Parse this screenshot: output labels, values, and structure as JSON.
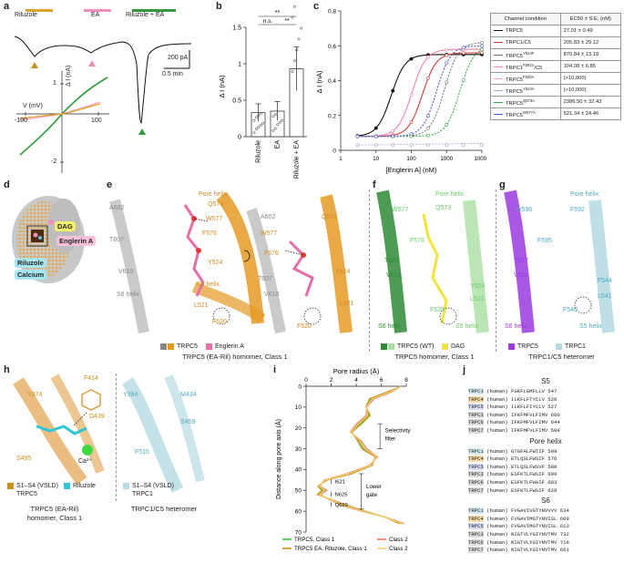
{
  "panels": {
    "a": "a",
    "b": "b",
    "c": "c",
    "d": "d",
    "e": "e",
    "f": "f",
    "g": "g",
    "h": "h",
    "i": "i",
    "j": "j"
  },
  "panel_a": {
    "bars": [
      {
        "label": "Riluzole",
        "color": "#e2a32a"
      },
      {
        "label": "EA",
        "color": "#ef8fb8"
      },
      {
        "label": "Riluzole + EA",
        "color": "#2f9a3a"
      }
    ],
    "scale_current": "200 pA",
    "scale_time": "0.5 min",
    "iv": {
      "xlabel": "V (mV)",
      "ylabel": "Δ I (nA)",
      "x_ticks": [
        "-100",
        "100"
      ],
      "y_ticks": [
        "1",
        "-2"
      ]
    }
  },
  "chart_data": [
    {
      "type": "bar",
      "panel": "b",
      "categories": [
        "Riluzole",
        "EA",
        "Riluzole + EA"
      ],
      "values": [
        0.33,
        0.35,
        0.93
      ],
      "errors": [
        0.12,
        0.13,
        0.3
      ],
      "ylabel": "Δ I (nA)",
      "ylim": [
        0,
        1.5
      ],
      "y_ticks": [
        "0",
        "0.5",
        "1",
        "1.5"
      ],
      "significance": [
        "n.s.",
        "**",
        "**"
      ]
    },
    {
      "type": "line",
      "panel": "c",
      "xlabel": "[Englerin A] (nM)",
      "ylabel": "Δ I (nA)",
      "xscale": "log",
      "xlim": [
        1,
        10000
      ],
      "ylim": [
        0,
        0.8
      ],
      "x_ticks": [
        "1",
        "10",
        "100",
        "1000",
        "10000"
      ],
      "y_ticks": [
        "0",
        "0.2",
        "0.4",
        "0.6",
        "0.8"
      ],
      "series": [
        {
          "name": "TRPC5",
          "color": "#111111",
          "ec50": 27.01,
          "top": 0.55
        },
        {
          "name": "TRPC1/C5",
          "color": "#d83a3a",
          "ec50": 205.83,
          "top": 0.56
        },
        {
          "name": "TRPC5Y524F",
          "color": "#777777",
          "ec50": 870.84,
          "top": 0.62
        },
        {
          "name": "TRPC1F591V/C5",
          "color": "#f07fb0",
          "ec50": 104.08,
          "top": 0.58
        },
        {
          "name": "TRPC5F520A",
          "color": "#f2a3c4",
          "ec50": null,
          "top": 0.05
        },
        {
          "name": "TRPC5Y524A",
          "color": "#9ab0e0",
          "ec50": null,
          "top": 0.04
        },
        {
          "name": "TRPC5Q573A",
          "color": "#3aa84a",
          "ec50": 2386.5,
          "top": 0.6
        },
        {
          "name": "TRPC5W577A",
          "color": "#4a5ad0",
          "ec50": 521.34,
          "top": 0.6
        }
      ]
    },
    {
      "type": "line",
      "panel": "i",
      "title": "Pore radius (Å)",
      "ylabel": "Distance along pore axis (Å)",
      "xlim": [
        0,
        8
      ],
      "ylim": [
        0,
        70
      ],
      "x_ticks": [
        "0",
        "2",
        "4",
        "6",
        "8"
      ],
      "y_ticks": [
        "0",
        "10",
        "20",
        "30",
        "40",
        "50",
        "60",
        "70"
      ],
      "series": [
        {
          "name": "TRPC5, Class 1",
          "color": "#3cc43c"
        },
        {
          "name": "Class 2",
          "color": "#f07a5a"
        },
        {
          "name": "TRPC5 EA, Riluzole, Class 1",
          "color": "#c9901e"
        },
        {
          "name": "Class 2",
          "color": "#f4d36e"
        }
      ],
      "annotations": [
        "Selectivity filter",
        "Lower gate",
        "I621",
        "N625",
        "Q629"
      ]
    }
  ],
  "table_c": {
    "header": [
      "Channel condition",
      "EC50 ± S.E. (nM)"
    ],
    "rows": [
      {
        "name": "TRPC5",
        "sup": "",
        "value": "27.01 ± 0.49",
        "color": "#111111"
      },
      {
        "name": "TRPC1/C5",
        "sup": "",
        "value": "205.83 ± 29.12",
        "color": "#d83a3a"
      },
      {
        "name": "TRPC5",
        "sup": "Y524F",
        "value": "870.84 ± 13.18",
        "color": "#777777"
      },
      {
        "name": "TRPC1",
        "sup": "F591V",
        "suffix": "/C5",
        "value": "104.08 ± 6.85",
        "color": "#f07fb0"
      },
      {
        "name": "TRPC5",
        "sup": "F520A",
        "value": "(>10,000)",
        "color": "#f2a3c4"
      },
      {
        "name": "TRPC5",
        "sup": "Y524A",
        "value": "(>10,000)",
        "color": "#9ab0e0"
      },
      {
        "name": "TRPC5",
        "sup": "Q573A",
        "value": "2386.50 ± 32.43",
        "color": "#3aa84a"
      },
      {
        "name": "TRPC5",
        "sup": "W577A",
        "value": "521.34 ± 24.46",
        "color": "#4a5ad0"
      }
    ]
  },
  "panel_d": {
    "labels": [
      "DAG",
      "Englerin A",
      "Riluzole",
      "Calcium"
    ]
  },
  "panel_e": {
    "residues": [
      "Pore helix",
      "Q573",
      "W577",
      "F576",
      "A602",
      "T607",
      "V610",
      "Y524",
      "L521",
      "F520",
      "S6 helix",
      "S5 helix"
    ],
    "residues_right": [
      "A602",
      "Q573",
      "W577",
      "F576",
      "T607",
      "V610",
      "Y524",
      "L521",
      "F520"
    ],
    "legend": [
      "TRPC5",
      "Englerin A"
    ],
    "caption": "TRPC5 (EA-Ril) homomer, Class 1"
  },
  "panel_f": {
    "residues": [
      "Pore helix",
      "W577",
      "Q573",
      "F576",
      "T607",
      "V610",
      "Y524",
      "L521",
      "F520",
      "S6 helix",
      "S5 helix"
    ],
    "legend": [
      "TRPC5 (WT)",
      "DAG"
    ],
    "caption": "TRPC5 homomer, Class 1"
  },
  "panel_g": {
    "residues": [
      "Pore helix",
      "W596",
      "F592",
      "F595",
      "T607",
      "V610",
      "F544",
      "L541",
      "F540",
      "S6 helix",
      "S5 helix"
    ],
    "legend": [
      "TRPC5",
      "TRPC1"
    ],
    "caption": "TRPC1/C5 heteromer"
  },
  "panel_h": {
    "left_residues": [
      "F414",
      "Y374",
      "D439",
      "S495",
      "Ca²⁺"
    ],
    "right_residues": [
      "Y394",
      "M434",
      "S459",
      "F515"
    ],
    "legend_left": [
      "S1–S4 (VSLD)",
      "TRPC5",
      "Riluzole"
    ],
    "legend_right": [
      "S1–S4 (VSLD)",
      "TRPC1"
    ],
    "caption_left": [
      "TRPC5 (EA-Ril)",
      "homomer, Class 1"
    ],
    "caption_right": "TRPC1/C5 heteromer"
  },
  "panel_j": {
    "sections": [
      {
        "title": "S5",
        "rows": [
          {
            "name": "TRPC1",
            "species": "(human)",
            "seq": "FGKFLGMFLLV",
            "num": "547"
          },
          {
            "name": "TRPC4",
            "species": "(human)",
            "seq": "ILKFLFTYCLV",
            "num": "526"
          },
          {
            "name": "TRPC5",
            "species": "(human)",
            "seq": "ILKFLFIYCLV",
            "num": "527"
          },
          {
            "name": "TRPC3",
            "species": "(human)",
            "seq": "IFKFMFVLFIMV",
            "num": "660"
          },
          {
            "name": "TRPC6",
            "species": "(human)",
            "seq": "IFKFMFVLFIMV",
            "num": "644"
          },
          {
            "name": "TRPC7",
            "species": "(human)",
            "seq": "IFKFMFVLFIMV",
            "num": "589"
          }
        ]
      },
      {
        "title": "Pore helix",
        "rows": [
          {
            "name": "TRPC1",
            "species": "(human)",
            "seq": "GTGFALFWTIF",
            "num": "599"
          },
          {
            "name": "TRPC4",
            "species": "(human)",
            "seq": "ETLQSLFWSIF",
            "num": "576"
          },
          {
            "name": "TRPC5",
            "species": "(human)",
            "seq": "ETLQSLFWSVF",
            "num": "580"
          },
          {
            "name": "TRPC3",
            "species": "(human)",
            "seq": "ESFKTLFWSIF",
            "num": "699"
          },
          {
            "name": "TRPC6",
            "species": "(human)",
            "seq": "ESFKTLFWAIF",
            "num": "683"
          },
          {
            "name": "TRPC7",
            "species": "(human)",
            "seq": "ESFKTLFWSIF",
            "num": "628"
          }
        ]
      },
      {
        "title": "S6",
        "rows": [
          {
            "name": "TRPC1",
            "species": "(human)",
            "seq": "FVGAVIVGTYNVVVV",
            "num": "634"
          },
          {
            "name": "TRPC4",
            "species": "(human)",
            "seq": "FVGAVIMGTYNVISL",
            "num": "609"
          },
          {
            "name": "TRPC5",
            "species": "(human)",
            "seq": "FVGAVIMGTYNVISL",
            "num": "613"
          },
          {
            "name": "TRPC3",
            "species": "(human)",
            "seq": "NIGTVLYGIYNVTMV",
            "num": "732"
          },
          {
            "name": "TRPC6",
            "species": "(human)",
            "seq": "NIGTVLYGIYNVTMV",
            "num": "716"
          },
          {
            "name": "TRPC7",
            "species": "(human)",
            "seq": "NIGTVLYGIYNVTMV",
            "num": "661"
          }
        ]
      }
    ]
  }
}
